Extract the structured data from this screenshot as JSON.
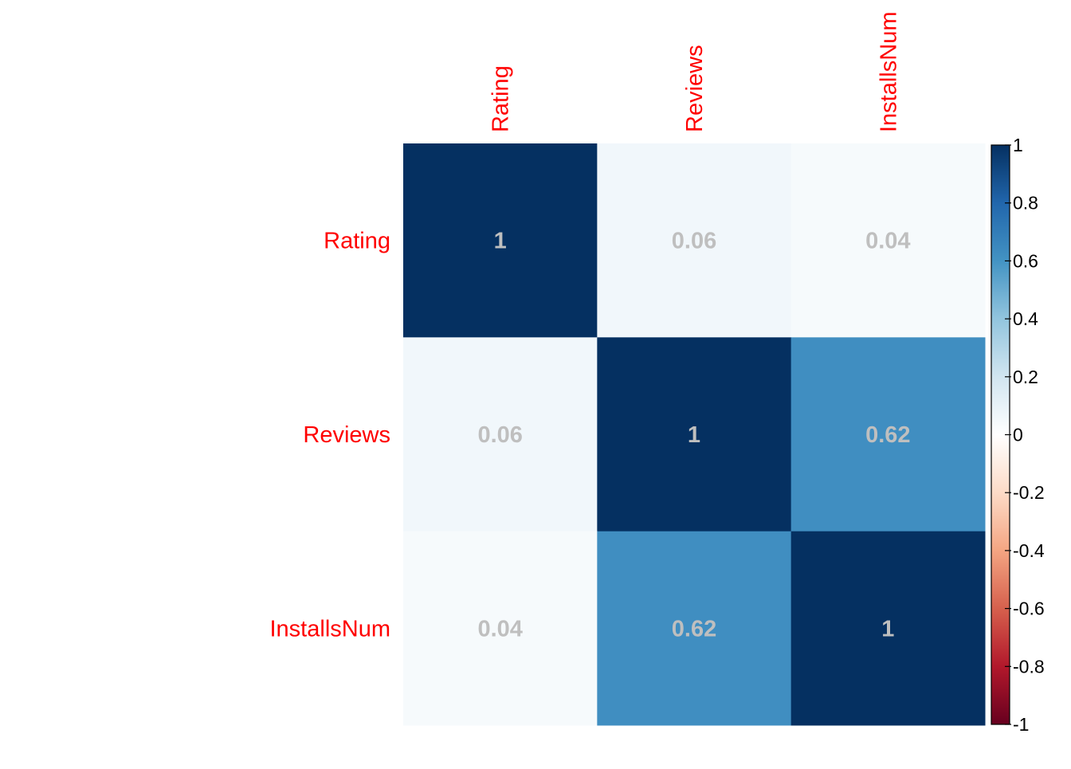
{
  "chart_data": {
    "type": "heatmap",
    "title": "",
    "variables": [
      "Rating",
      "Reviews",
      "InstallsNum"
    ],
    "matrix": [
      [
        1,
        0.06,
        0.04
      ],
      [
        0.06,
        1,
        0.62
      ],
      [
        0.04,
        0.62,
        1
      ]
    ],
    "cell_labels": [
      [
        "1",
        "0.06",
        "0.04"
      ],
      [
        "0.06",
        "1",
        "0.62"
      ],
      [
        "0.04",
        "0.62",
        "1"
      ]
    ],
    "label_color": "#ff0000",
    "value_text_color": "#bfbfbf",
    "colorbar": {
      "range": [
        -1,
        1
      ],
      "ticks": [
        "1",
        "0.8",
        "0.6",
        "0.4",
        "0.2",
        "0",
        "-0.2",
        "-0.4",
        "-0.6",
        "-0.8",
        "-1"
      ],
      "tick_values": [
        1,
        0.8,
        0.6,
        0.4,
        0.2,
        0,
        -0.2,
        -0.4,
        -0.6,
        -0.8,
        -1
      ],
      "palette": [
        "#67001f",
        "#b2182b",
        "#d6604d",
        "#f4a582",
        "#fddbc7",
        "#ffffff",
        "#d1e5f0",
        "#92c5de",
        "#4393c3",
        "#2166ac",
        "#053061"
      ],
      "position": "right"
    }
  }
}
